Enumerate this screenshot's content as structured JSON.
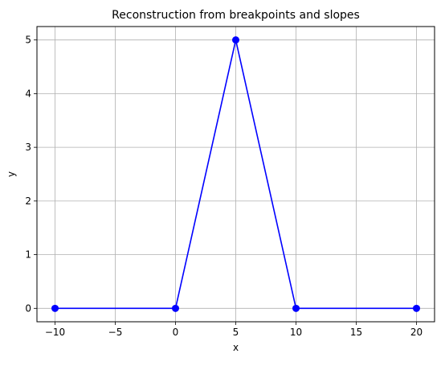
{
  "chart_data": {
    "type": "line",
    "title": "Reconstruction from breakpoints and slopes",
    "xlabel": "x",
    "ylabel": "y",
    "xlim": [
      -11.5,
      21.5
    ],
    "ylim": [
      -0.25,
      5.25
    ],
    "xticks": [
      -10,
      -5,
      0,
      5,
      10,
      15,
      20
    ],
    "yticks": [
      0,
      1,
      2,
      3,
      4,
      5
    ],
    "grid": true,
    "series": [
      {
        "x": [
          -10,
          0,
          5,
          10,
          20
        ],
        "y": [
          0,
          0,
          5,
          0,
          0
        ],
        "color": "#0000ff",
        "marker": "circle"
      }
    ]
  }
}
